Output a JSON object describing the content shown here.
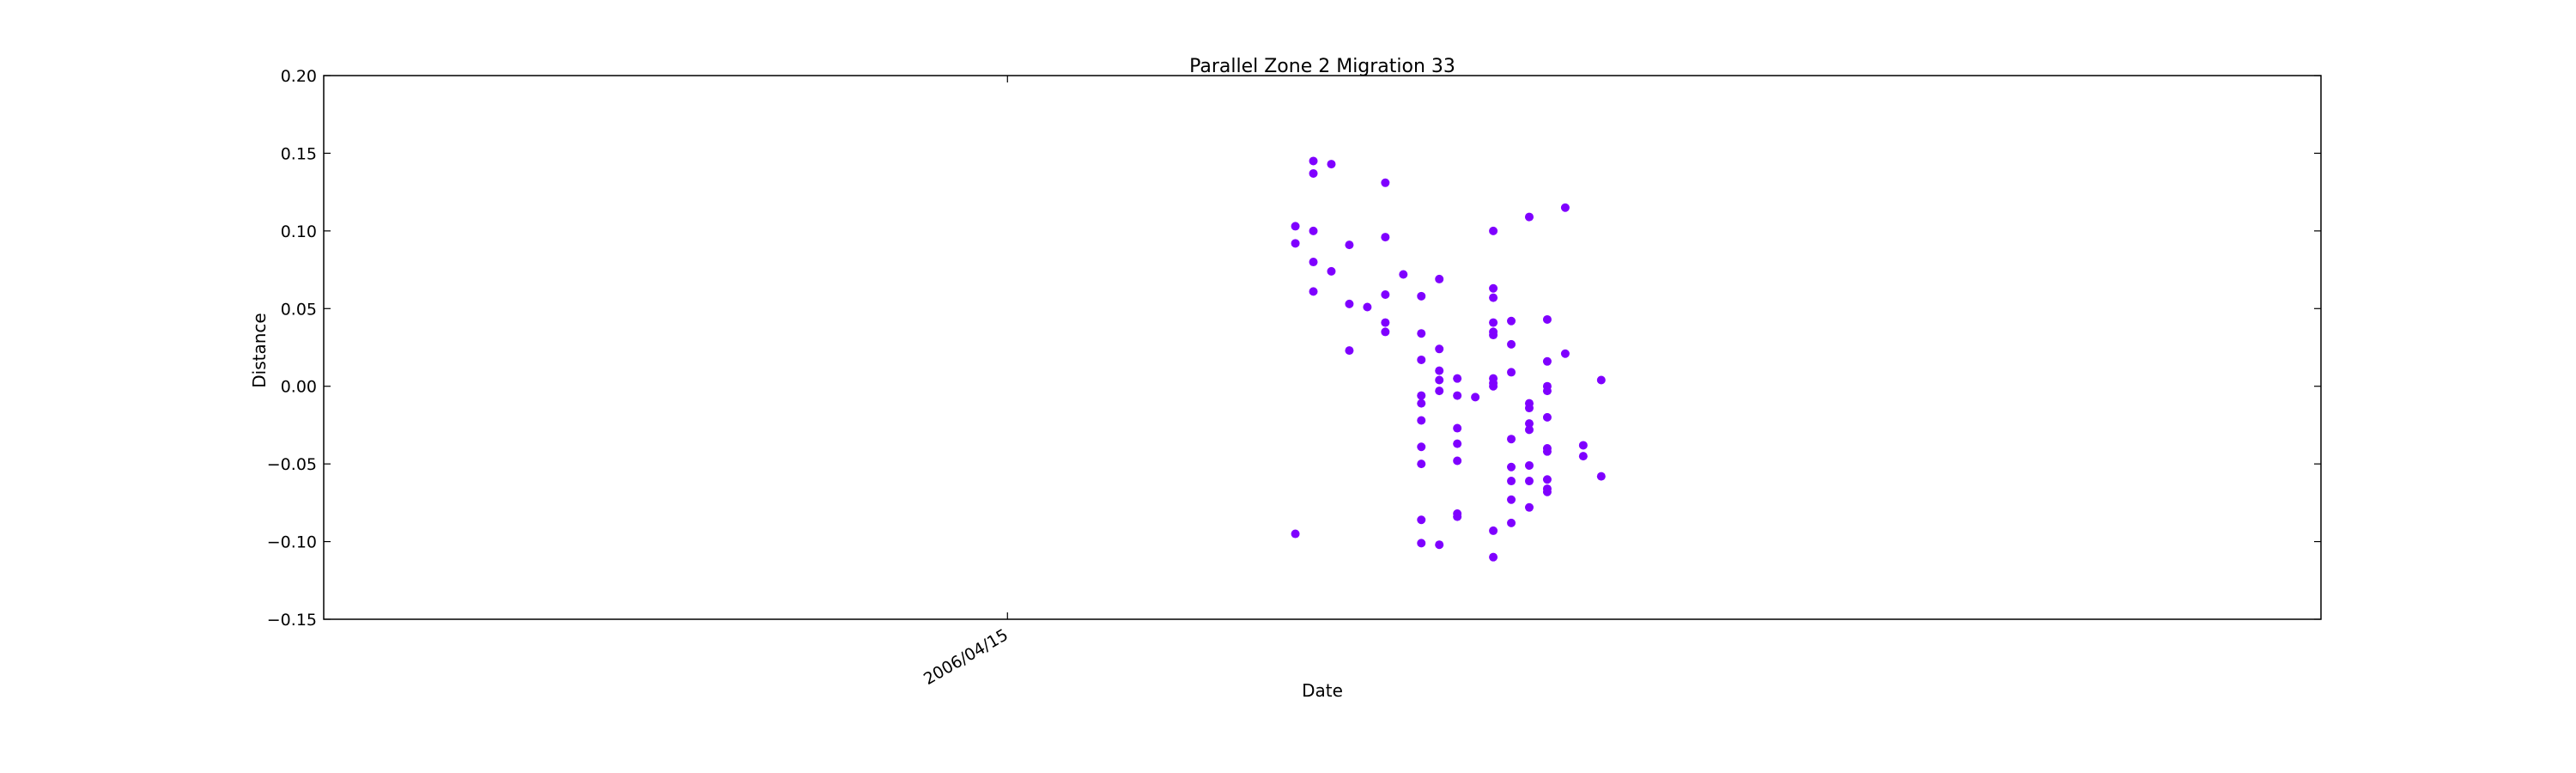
{
  "chart_data": {
    "type": "scatter",
    "title": "Parallel Zone 2 Migration 33",
    "xlabel": "Date",
    "ylabel": "Distance",
    "x_ticks": [
      "2006/04/15"
    ],
    "y_ticks": [
      "0.20",
      "0.15",
      "0.10",
      "0.05",
      "0.00",
      "−0.05",
      "−0.10",
      "−0.15"
    ],
    "ylim": [
      -0.15,
      0.2
    ],
    "xlim": [
      "2006/03/08",
      "2006/06/27"
    ],
    "grid": false,
    "marker_color": "#7f00ff",
    "series": [
      {
        "points": [
          {
            "x": "2006/05/02",
            "y": 0.145
          },
          {
            "x": "2006/05/02",
            "y": 0.137
          },
          {
            "x": "2006/05/03",
            "y": 0.143
          },
          {
            "x": "2006/05/06",
            "y": 0.131
          },
          {
            "x": "2006/05/01",
            "y": 0.103
          },
          {
            "x": "2006/05/02",
            "y": 0.1
          },
          {
            "x": "2006/05/01",
            "y": 0.092
          },
          {
            "x": "2006/05/04",
            "y": 0.091
          },
          {
            "x": "2006/05/06",
            "y": 0.096
          },
          {
            "x": "2006/05/12",
            "y": 0.1
          },
          {
            "x": "2006/05/14",
            "y": 0.109
          },
          {
            "x": "2006/05/16",
            "y": 0.115
          },
          {
            "x": "2006/05/02",
            "y": 0.08
          },
          {
            "x": "2006/05/03",
            "y": 0.074
          },
          {
            "x": "2006/05/07",
            "y": 0.072
          },
          {
            "x": "2006/05/09",
            "y": 0.069
          },
          {
            "x": "2006/05/12",
            "y": 0.063
          },
          {
            "x": "2006/05/02",
            "y": 0.061
          },
          {
            "x": "2006/05/06",
            "y": 0.059
          },
          {
            "x": "2006/05/08",
            "y": 0.058
          },
          {
            "x": "2006/05/12",
            "y": 0.057
          },
          {
            "x": "2006/05/04",
            "y": 0.053
          },
          {
            "x": "2006/05/05",
            "y": 0.051
          },
          {
            "x": "2006/05/15",
            "y": 0.043
          },
          {
            "x": "2006/05/06",
            "y": 0.041
          },
          {
            "x": "2006/05/12",
            "y": 0.041
          },
          {
            "x": "2006/05/13",
            "y": 0.042
          },
          {
            "x": "2006/05/06",
            "y": 0.035
          },
          {
            "x": "2006/05/08",
            "y": 0.034
          },
          {
            "x": "2006/05/12",
            "y": 0.033
          },
          {
            "x": "2006/05/12",
            "y": 0.035
          },
          {
            "x": "2006/05/13",
            "y": 0.027
          },
          {
            "x": "2006/05/09",
            "y": 0.024
          },
          {
            "x": "2006/05/04",
            "y": 0.023
          },
          {
            "x": "2006/05/16",
            "y": 0.021
          },
          {
            "x": "2006/05/15",
            "y": 0.016
          },
          {
            "x": "2006/05/08",
            "y": 0.017
          },
          {
            "x": "2006/05/09",
            "y": 0.01
          },
          {
            "x": "2006/05/13",
            "y": 0.009
          },
          {
            "x": "2006/05/10",
            "y": 0.005
          },
          {
            "x": "2006/05/12",
            "y": 0.005
          },
          {
            "x": "2006/05/09",
            "y": 0.004
          },
          {
            "x": "2006/05/18",
            "y": 0.004
          },
          {
            "x": "2006/05/12",
            "y": 0.002
          },
          {
            "x": "2006/05/12",
            "y": 0.0
          },
          {
            "x": "2006/05/15",
            "y": 0.0
          },
          {
            "x": "2006/05/09",
            "y": -0.003
          },
          {
            "x": "2006/05/15",
            "y": -0.003
          },
          {
            "x": "2006/05/08",
            "y": -0.006
          },
          {
            "x": "2006/05/10",
            "y": -0.006
          },
          {
            "x": "2006/05/11",
            "y": -0.007
          },
          {
            "x": "2006/05/08",
            "y": -0.011
          },
          {
            "x": "2006/05/14",
            "y": -0.011
          },
          {
            "x": "2006/05/14",
            "y": -0.014
          },
          {
            "x": "2006/05/15",
            "y": -0.02
          },
          {
            "x": "2006/05/08",
            "y": -0.022
          },
          {
            "x": "2006/05/14",
            "y": -0.024
          },
          {
            "x": "2006/05/10",
            "y": -0.027
          },
          {
            "x": "2006/05/14",
            "y": -0.028
          },
          {
            "x": "2006/05/13",
            "y": -0.034
          },
          {
            "x": "2006/05/10",
            "y": -0.037
          },
          {
            "x": "2006/05/17",
            "y": -0.038
          },
          {
            "x": "2006/05/08",
            "y": -0.039
          },
          {
            "x": "2006/05/15",
            "y": -0.04
          },
          {
            "x": "2006/05/15",
            "y": -0.042
          },
          {
            "x": "2006/05/17",
            "y": -0.045
          },
          {
            "x": "2006/05/10",
            "y": -0.048
          },
          {
            "x": "2006/05/08",
            "y": -0.05
          },
          {
            "x": "2006/05/13",
            "y": -0.052
          },
          {
            "x": "2006/05/14",
            "y": -0.051
          },
          {
            "x": "2006/05/18",
            "y": -0.058
          },
          {
            "x": "2006/05/15",
            "y": -0.06
          },
          {
            "x": "2006/05/13",
            "y": -0.061
          },
          {
            "x": "2006/05/14",
            "y": -0.061
          },
          {
            "x": "2006/05/15",
            "y": -0.066
          },
          {
            "x": "2006/05/15",
            "y": -0.068
          },
          {
            "x": "2006/05/13",
            "y": -0.073
          },
          {
            "x": "2006/05/14",
            "y": -0.078
          },
          {
            "x": "2006/05/10",
            "y": -0.082
          },
          {
            "x": "2006/05/10",
            "y": -0.084
          },
          {
            "x": "2006/05/08",
            "y": -0.086
          },
          {
            "x": "2006/05/13",
            "y": -0.088
          },
          {
            "x": "2006/05/12",
            "y": -0.093
          },
          {
            "x": "2006/05/01",
            "y": -0.095
          },
          {
            "x": "2006/05/08",
            "y": -0.101
          },
          {
            "x": "2006/05/09",
            "y": -0.102
          },
          {
            "x": "2006/05/12",
            "y": -0.11
          }
        ]
      }
    ]
  }
}
